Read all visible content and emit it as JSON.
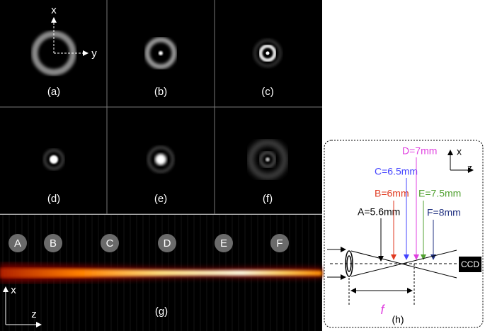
{
  "panels": {
    "a": {
      "label": "(a)",
      "axis_x": "x",
      "axis_y": "y"
    },
    "b": {
      "label": "(b)"
    },
    "c": {
      "label": "(c)"
    },
    "d": {
      "label": "(d)"
    },
    "e": {
      "label": "(e)"
    },
    "f": {
      "label": "(f)"
    },
    "g": {
      "label": "(g)",
      "markers": [
        "A",
        "B",
        "C",
        "D",
        "E",
        "F"
      ],
      "axis_x": "x",
      "axis_z": "z"
    },
    "h": {
      "label": "(h)",
      "axis_x": "x",
      "axis_z": "z",
      "positions": [
        "A=5.6mm",
        "B=6mm",
        "C=6.5mm",
        "D=7mm",
        "E=7.5mm",
        "F=8mm"
      ],
      "detector": "CCD",
      "focal": "f"
    }
  }
}
